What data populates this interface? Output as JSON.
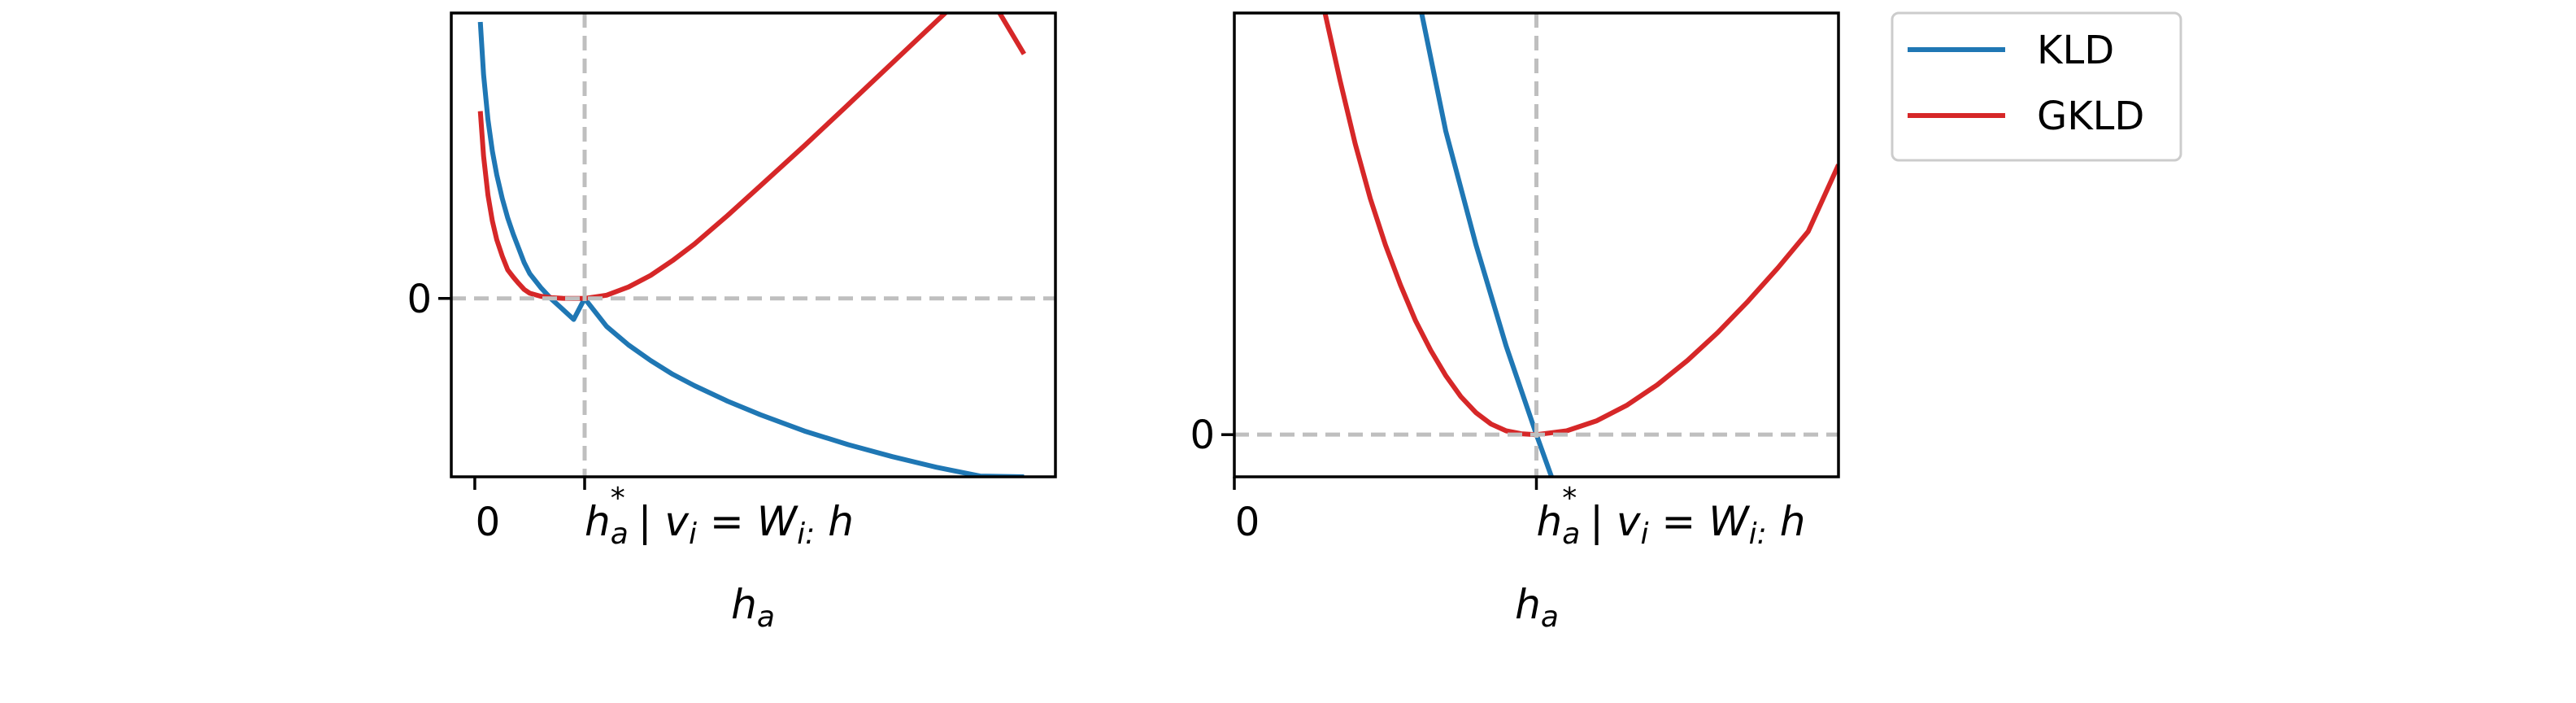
{
  "colors": {
    "kld": "#1f77b4",
    "gkld": "#d62728",
    "guide": "#bfbfbf",
    "axes": "#000000"
  },
  "legend": {
    "placement": "outside-right",
    "entries": [
      {
        "label": "KLD",
        "color": "#1f77b4"
      },
      {
        "label": "GKLD",
        "color": "#d62728"
      }
    ]
  },
  "chart_data": [
    {
      "type": "line",
      "panel": "left",
      "xlabel": "h_a",
      "xlim": [
        -0.214,
        5.286
      ],
      "ylim": [
        -1.0,
        1.6
      ],
      "xticks": [
        {
          "value": 0,
          "label": "0"
        },
        {
          "value": 1,
          "label": "h_a^* | v_i = W_{i:} h"
        }
      ],
      "yticks": [
        {
          "value": 0,
          "label": "0"
        }
      ],
      "guides": {
        "vline_x": 1,
        "hline_y": 0
      },
      "series": [
        {
          "name": "KLD",
          "color": "#1f77b4",
          "x": [
            0.05,
            0.08,
            0.12,
            0.16,
            0.2,
            0.25,
            0.3,
            0.35,
            0.4,
            0.45,
            0.5,
            0.6,
            0.7,
            0.8,
            0.9,
            1.0,
            1.2,
            1.4,
            1.6,
            1.8,
            2.0,
            2.3,
            2.6,
            3.0,
            3.4,
            3.8,
            4.2,
            4.6,
            5.0
          ],
          "y": [
            1.55,
            1.255,
            1.002,
            0.826,
            0.693,
            0.56,
            0.451,
            0.36,
            0.281,
            0.2,
            0.139,
            0.061,
            -0.005,
            -0.061,
            -0.118,
            0.0,
            -0.157,
            -0.261,
            -0.348,
            -0.425,
            -0.489,
            -0.576,
            -0.652,
            -0.743,
            -0.82,
            -0.887,
            -0.946,
            -0.996,
            -1.0
          ]
        },
        {
          "name": "GKLD",
          "color": "#d62728",
          "x": [
            0.05,
            0.08,
            0.12,
            0.16,
            0.2,
            0.25,
            0.3,
            0.35,
            0.4,
            0.45,
            0.5,
            0.6,
            0.7,
            0.8,
            0.9,
            1.0,
            1.2,
            1.4,
            1.6,
            1.8,
            2.0,
            2.3,
            2.6,
            3.0,
            3.4,
            3.8,
            4.2,
            4.6,
            5.0
          ],
          "y": [
            1.05,
            0.798,
            0.579,
            0.434,
            0.329,
            0.237,
            0.16,
            0.12,
            0.084,
            0.05,
            0.029,
            0.012,
            0.004,
            0.001,
            0.0,
            0.0,
            0.018,
            0.064,
            0.129,
            0.212,
            0.305,
            0.464,
            0.631,
            0.856,
            1.087,
            1.32,
            1.552,
            1.784,
            1.37
          ]
        }
      ]
    },
    {
      "type": "line",
      "panel": "right",
      "xlabel": "h_a",
      "xlim": [
        0.0,
        2.0
      ],
      "ylim": [
        -0.1,
        1.0
      ],
      "xticks": [
        {
          "value": 0,
          "label": "0"
        },
        {
          "value": 1,
          "label": "h_a^* | v_i = W_{i:} h"
        }
      ],
      "yticks": [
        {
          "value": 0,
          "label": "0"
        }
      ],
      "guides": {
        "vline_x": 1,
        "hline_y": 0
      },
      "series": [
        {
          "name": "KLD",
          "color": "#1f77b4",
          "x": [
            0.62,
            0.7,
            0.8,
            0.9,
            1.0,
            1.05
          ],
          "y": [
            1.0,
            0.72,
            0.45,
            0.21,
            0.0,
            -0.1
          ]
        },
        {
          "name": "GKLD",
          "color": "#d62728",
          "x": [
            0.3,
            0.35,
            0.4,
            0.45,
            0.5,
            0.55,
            0.6,
            0.65,
            0.7,
            0.75,
            0.8,
            0.85,
            0.9,
            0.95,
            1.0,
            1.1,
            1.2,
            1.3,
            1.4,
            1.5,
            1.6,
            1.7,
            1.8,
            1.9,
            2.0
          ],
          "y": [
            1.0,
            0.84,
            0.69,
            0.56,
            0.45,
            0.355,
            0.27,
            0.2,
            0.14,
            0.09,
            0.052,
            0.025,
            0.009,
            0.002,
            0.0,
            0.009,
            0.033,
            0.07,
            0.118,
            0.176,
            0.242,
            0.316,
            0.396,
            0.482,
            0.64
          ]
        }
      ]
    }
  ]
}
